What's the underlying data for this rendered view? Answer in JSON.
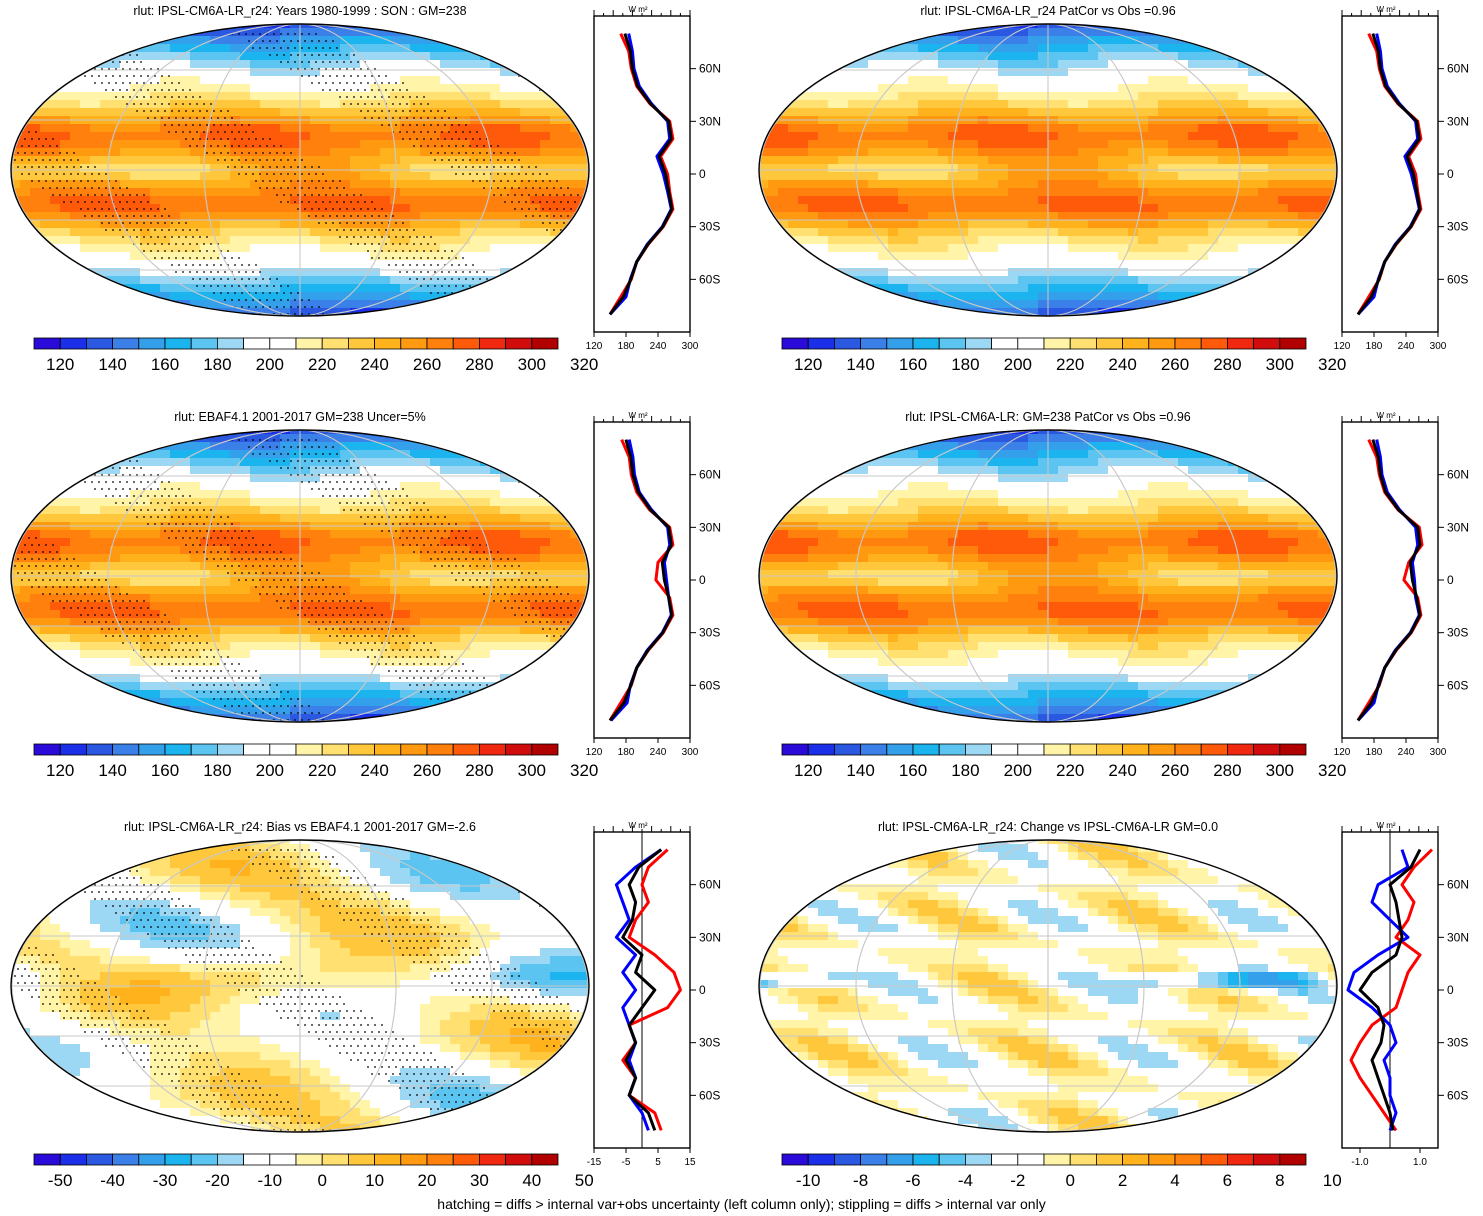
{
  "panels": [
    {
      "title": "rlut: IPSL-CM6A-LR_r24: Years 1980-1999 : SON : GM=238",
      "kind": "mean",
      "colorbar": {
        "labels": [
          "120",
          "140",
          "160",
          "180",
          "200",
          "220",
          "240",
          "260",
          "280",
          "300",
          "320"
        ]
      },
      "profile": {
        "units": "W m²",
        "xticks": [
          "120",
          "180",
          "240",
          "300"
        ],
        "xlim": [
          120,
          300
        ]
      }
    },
    {
      "title": "rlut: IPSL-CM6A-LR_r24 PatCor vs Obs =0.96",
      "kind": "mean",
      "colorbar": {
        "labels": [
          "120",
          "140",
          "160",
          "180",
          "200",
          "220",
          "240",
          "260",
          "280",
          "300",
          "320"
        ]
      },
      "profile": {
        "units": "W m²",
        "xticks": [
          "120",
          "180",
          "240",
          "300"
        ],
        "xlim": [
          120,
          300
        ]
      }
    },
    {
      "title": "rlut: EBAF4.1 2001-2017 GM=238 Uncer=5%",
      "kind": "mean",
      "colorbar": {
        "labels": [
          "120",
          "140",
          "160",
          "180",
          "200",
          "220",
          "240",
          "260",
          "280",
          "300",
          "320"
        ]
      },
      "profile": {
        "units": "W m²",
        "xticks": [
          "120",
          "180",
          "240",
          "300"
        ],
        "xlim": [
          120,
          300
        ]
      }
    },
    {
      "title": "rlut: IPSL-CM6A-LR: GM=238 PatCor vs Obs =0.96",
      "kind": "mean",
      "colorbar": {
        "labels": [
          "120",
          "140",
          "160",
          "180",
          "200",
          "220",
          "240",
          "260",
          "280",
          "300",
          "320"
        ]
      },
      "profile": {
        "units": "W m²",
        "xticks": [
          "120",
          "180",
          "240",
          "300"
        ],
        "xlim": [
          120,
          300
        ]
      }
    },
    {
      "title": "rlut: IPSL-CM6A-LR_r24: Bias vs EBAF4.1 2001-2017  GM=-2.6",
      "kind": "bias",
      "colorbar": {
        "labels": [
          "-50",
          "-40",
          "-30",
          "-20",
          "-10",
          "0",
          "10",
          "20",
          "30",
          "40",
          "50"
        ]
      },
      "profile": {
        "units": "W m²",
        "xticks": [
          "-15",
          "-5",
          "5",
          "15"
        ],
        "xlim": [
          -15,
          15
        ]
      }
    },
    {
      "title": "rlut: IPSL-CM6A-LR_r24: Change vs IPSL-CM6A-LR GM=0.0",
      "kind": "change",
      "colorbar": {
        "labels": [
          "-10",
          "-8",
          "-6",
          "-4",
          "-2",
          "0",
          "2",
          "4",
          "6",
          "8",
          "10"
        ]
      },
      "profile": {
        "units": "W m²",
        "xticks": [
          "-1.0",
          "1.0"
        ],
        "xlim": [
          -1.6,
          1.6
        ]
      }
    }
  ],
  "lat_labels": [
    "60N",
    "30N",
    "0",
    "30S",
    "60S"
  ],
  "colors": {
    "scale": [
      "#2a0ad8",
      "#1b2ee8",
      "#2a58e0",
      "#3a80e8",
      "#34a0ec",
      "#1cb4ee",
      "#5cc4f0",
      "#9cd8f4",
      "#ffffff",
      "#ffffff",
      "#fff4a8",
      "#ffe070",
      "#ffc83c",
      "#ffb21c",
      "#ff9a10",
      "#ff800c",
      "#ff5a0a",
      "#f02810",
      "#d00c0c",
      "#b00000"
    ],
    "profile_model": "#ff0000",
    "profile_other": "#0000ff",
    "profile_obs": "#000000"
  },
  "chart_data": [
    {
      "type": "heatmap",
      "title": "rlut: IPSL-CM6A-LR_r24: Years 1980-1999 : SON : GM=238",
      "zrange": [
        120,
        320
      ],
      "global_mean": 238,
      "zonal_profile": {
        "lat": [
          80,
          70,
          60,
          50,
          40,
          30,
          20,
          10,
          0,
          -10,
          -20,
          -30,
          -40,
          -50,
          -60,
          -70,
          -80
        ],
        "red": [
          170,
          185,
          190,
          200,
          225,
          262,
          268,
          245,
          258,
          262,
          268,
          250,
          222,
          200,
          190,
          170,
          150
        ],
        "blue": [
          185,
          192,
          195,
          205,
          228,
          258,
          262,
          238,
          250,
          258,
          265,
          248,
          220,
          200,
          188,
          180,
          150
        ],
        "black": [
          178,
          188,
          192,
          202,
          226,
          260,
          265,
          242,
          254,
          260,
          266,
          249,
          221,
          200,
          189,
          175,
          150
        ]
      }
    },
    {
      "type": "heatmap",
      "title": "rlut: IPSL-CM6A-LR_r24 PatCor vs Obs =0.96",
      "zrange": [
        120,
        320
      ],
      "pattern_correlation": 0.96,
      "zonal_profile": {
        "lat": [
          80,
          70,
          60,
          50,
          40,
          30,
          20,
          10,
          0,
          -10,
          -20,
          -30,
          -40,
          -50,
          -60,
          -70,
          -80
        ],
        "red": [
          170,
          185,
          190,
          200,
          225,
          262,
          268,
          245,
          258,
          262,
          268,
          250,
          222,
          200,
          190,
          170,
          150
        ],
        "blue": [
          185,
          192,
          195,
          205,
          228,
          258,
          262,
          238,
          250,
          258,
          265,
          248,
          220,
          200,
          188,
          180,
          150
        ],
        "black": [
          178,
          188,
          192,
          202,
          226,
          260,
          265,
          242,
          254,
          260,
          266,
          249,
          221,
          200,
          189,
          175,
          150
        ]
      }
    },
    {
      "type": "heatmap",
      "title": "rlut: EBAF4.1 2001-2017 GM=238 Uncer=5%",
      "zrange": [
        120,
        320
      ],
      "global_mean": 238,
      "zonal_profile": {
        "lat": [
          80,
          70,
          60,
          50,
          40,
          30,
          20,
          10,
          0,
          -10,
          -20,
          -30,
          -40,
          -50,
          -60,
          -70,
          -80
        ],
        "red": [
          172,
          186,
          190,
          200,
          224,
          262,
          268,
          240,
          236,
          262,
          268,
          250,
          222,
          200,
          190,
          170,
          150
        ],
        "blue": [
          186,
          193,
          196,
          205,
          228,
          258,
          262,
          252,
          256,
          260,
          265,
          248,
          220,
          200,
          188,
          182,
          152
        ],
        "black": [
          180,
          189,
          193,
          203,
          226,
          260,
          265,
          248,
          252,
          260,
          266,
          249,
          221,
          200,
          189,
          176,
          150
        ]
      }
    },
    {
      "type": "heatmap",
      "title": "rlut: IPSL-CM6A-LR: GM=238 PatCor vs Obs =0.96",
      "zrange": [
        120,
        320
      ],
      "pattern_correlation": 0.96,
      "zonal_profile": {
        "lat": [
          80,
          70,
          60,
          50,
          40,
          30,
          20,
          10,
          0,
          -10,
          -20,
          -30,
          -40,
          -50,
          -60,
          -70,
          -80
        ],
        "red": [
          170,
          185,
          190,
          200,
          225,
          265,
          270,
          245,
          236,
          262,
          268,
          250,
          222,
          200,
          190,
          170,
          150
        ],
        "blue": [
          185,
          192,
          195,
          205,
          228,
          258,
          262,
          252,
          256,
          258,
          265,
          248,
          220,
          200,
          188,
          180,
          150
        ],
        "black": [
          178,
          188,
          192,
          202,
          226,
          262,
          266,
          248,
          252,
          260,
          266,
          249,
          221,
          200,
          189,
          175,
          150
        ]
      }
    },
    {
      "type": "heatmap",
      "title": "rlut: IPSL-CM6A-LR_r24: Bias vs EBAF4.1 2001-2017  GM=-2.6",
      "zrange": [
        -55,
        55
      ],
      "global_mean": -2.6,
      "zonal_profile": {
        "lat": [
          80,
          70,
          60,
          50,
          40,
          30,
          20,
          10,
          0,
          -10,
          -20,
          -30,
          -40,
          -50,
          -60,
          -70,
          -80
        ],
        "red": [
          8,
          2,
          0,
          2,
          -2,
          -4,
          4,
          10,
          12,
          8,
          -4,
          -2,
          -6,
          -2,
          -4,
          4,
          6
        ],
        "blue": [
          6,
          -2,
          -8,
          -6,
          -4,
          -8,
          -2,
          -6,
          -2,
          -6,
          -4,
          -2,
          -4,
          -2,
          -4,
          0,
          2
        ],
        "black": [
          6,
          -1,
          -4,
          -2,
          -3,
          -6,
          0,
          -2,
          4,
          0,
          -4,
          -2,
          -5,
          -2,
          -4,
          2,
          4
        ]
      }
    },
    {
      "type": "heatmap",
      "title": "rlut: IPSL-CM6A-LR_r24: Change vs IPSL-CM6A-LR GM=0.0",
      "zrange": [
        -11,
        11
      ],
      "global_mean": 0.0,
      "zonal_profile": {
        "lat": [
          80,
          70,
          60,
          50,
          40,
          30,
          20,
          10,
          0,
          -10,
          -20,
          -30,
          -40,
          -50,
          -60,
          -70,
          -80
        ],
        "red": [
          1.4,
          0.8,
          0.4,
          0.8,
          0.6,
          0.2,
          1.0,
          0.6,
          0.4,
          0.2,
          -0.6,
          -1.0,
          -1.3,
          -1.0,
          -0.6,
          -0.2,
          0.2
        ],
        "blue": [
          0.4,
          0.6,
          -0.4,
          -0.6,
          0.0,
          0.6,
          -0.4,
          -1.2,
          -1.4,
          -0.6,
          0.0,
          0.2,
          -0.2,
          0.0,
          0.0,
          0.2,
          0.0
        ],
        "black": [
          1.0,
          0.7,
          0.0,
          0.2,
          0.3,
          0.4,
          0.2,
          -0.6,
          -1.0,
          -0.4,
          -0.2,
          -0.3,
          -0.6,
          -0.4,
          -0.2,
          0.0,
          0.1
        ]
      }
    }
  ],
  "footer": "hatching = diffs > internal var+obs uncertainty (left column only); stippling = diffs > internal var only"
}
